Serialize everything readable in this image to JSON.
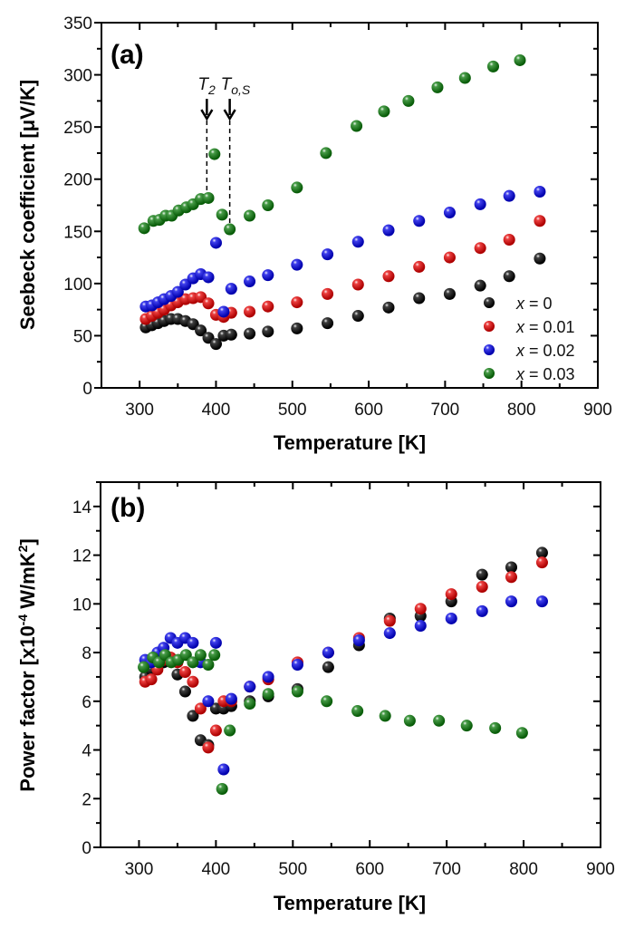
{
  "chart_data": [
    {
      "type": "scatter",
      "panel_label": "(a)",
      "title": "",
      "xlabel": "Temperature [K]",
      "ylabel": "Seebeck coefficient [μV/K]",
      "xlim": [
        250,
        900
      ],
      "ylim": [
        0,
        350
      ],
      "xticks": [
        300,
        400,
        500,
        600,
        700,
        800,
        900
      ],
      "yticks": [
        0,
        50,
        100,
        150,
        200,
        250,
        300,
        350
      ],
      "grid": false,
      "legend_position": "bottom-right",
      "annotations": [
        {
          "text": "T",
          "sub": "2",
          "x": 388,
          "arrow_y_from": 277,
          "line_to": 182
        },
        {
          "text": "T",
          "sub": "o,S",
          "x": 418,
          "arrow_y_from": 277,
          "line_to": 152
        }
      ],
      "series": [
        {
          "name": "x = 0",
          "label_var": "x",
          "label_val": "= 0",
          "color": "#000000",
          "x": [
            308,
            316,
            324,
            332,
            341,
            350,
            360,
            370,
            380,
            390,
            400,
            410,
            420,
            444,
            468,
            506,
            546,
            586,
            626,
            666,
            706,
            746,
            784,
            824
          ],
          "y": [
            58,
            60,
            62,
            64,
            66,
            66,
            64,
            61,
            55,
            48,
            42,
            50,
            51,
            52,
            54,
            57,
            62,
            69,
            77,
            86,
            90,
            98,
            107,
            124
          ]
        },
        {
          "name": "x = 0.01",
          "label_var": "x",
          "label_val": "= 0.01",
          "color": "#e60000",
          "x": [
            308,
            316,
            324,
            332,
            341,
            350,
            360,
            370,
            380,
            390,
            400,
            410,
            420,
            444,
            468,
            506,
            546,
            586,
            626,
            666,
            706,
            746,
            784,
            824
          ],
          "y": [
            66,
            69,
            72,
            75,
            79,
            82,
            85,
            86,
            87,
            81,
            70,
            68,
            72,
            73,
            78,
            82,
            90,
            99,
            107,
            116,
            125,
            134,
            142,
            160
          ]
        },
        {
          "name": "x = 0.02",
          "label_var": "x",
          "label_val": "= 0.02",
          "color": "#0000e6",
          "x": [
            308,
            316,
            324,
            332,
            341,
            350,
            360,
            370,
            380,
            390,
            400,
            410,
            420,
            444,
            468,
            506,
            546,
            586,
            626,
            666,
            706,
            746,
            784,
            824
          ],
          "y": [
            78,
            79,
            82,
            85,
            88,
            92,
            99,
            105,
            109,
            106,
            139,
            73,
            95,
            102,
            108,
            118,
            128,
            140,
            151,
            160,
            168,
            176,
            184,
            188
          ]
        },
        {
          "name": "x = 0.03",
          "label_var": "x",
          "label_val": "= 0.03",
          "color": "#0a7a0a",
          "x": [
            306,
            318,
            326,
            334,
            342,
            351,
            361,
            370,
            380,
            390,
            398,
            408,
            418,
            444,
            468,
            506,
            544,
            584,
            620,
            652,
            690,
            726,
            763,
            798
          ],
          "y": [
            153,
            160,
            161,
            165,
            165,
            170,
            173,
            176,
            181,
            182,
            224,
            166,
            152,
            165,
            175,
            192,
            225,
            251,
            265,
            275,
            288,
            297,
            308,
            314
          ]
        }
      ]
    },
    {
      "type": "scatter",
      "panel_label": "(b)",
      "title": "",
      "xlabel": "Temperature [K]",
      "ylabel": "Power factor [x10",
      "ylabel_sup": "-4",
      "ylabel_rest": " W/mK",
      "ylabel_sup2": "2",
      "ylabel_end": "]",
      "xlim": [
        250,
        900
      ],
      "ylim": [
        0,
        15
      ],
      "xticks": [
        300,
        400,
        500,
        600,
        700,
        800,
        900
      ],
      "yticks": [
        0,
        2,
        4,
        6,
        8,
        10,
        12,
        14
      ],
      "grid": false,
      "series": [
        {
          "name": "x = 0",
          "color": "#000000",
          "x": [
            308,
            316,
            324,
            332,
            341,
            350,
            360,
            370,
            380,
            390,
            400,
            410,
            420,
            444,
            468,
            506,
            546,
            586,
            626,
            666,
            706,
            746,
            784,
            824
          ],
          "y": [
            7.0,
            7.3,
            7.5,
            7.6,
            7.7,
            7.1,
            6.4,
            5.4,
            4.4,
            4.2,
            5.7,
            5.7,
            5.8,
            6.0,
            6.2,
            6.5,
            7.4,
            8.3,
            9.4,
            9.5,
            10.1,
            11.2,
            11.5,
            12.1
          ]
        },
        {
          "name": "x = 0.01",
          "color": "#e60000",
          "x": [
            308,
            316,
            324,
            332,
            341,
            350,
            360,
            370,
            380,
            390,
            400,
            410,
            420,
            444,
            468,
            506,
            546,
            586,
            626,
            666,
            706,
            746,
            784,
            824
          ],
          "y": [
            6.8,
            6.9,
            7.3,
            7.7,
            7.8,
            7.6,
            7.2,
            6.8,
            5.7,
            4.1,
            4.8,
            6.0,
            6.0,
            6.6,
            6.9,
            7.6,
            8.0,
            8.6,
            9.3,
            9.8,
            10.4,
            10.7,
            11.1,
            11.7
          ]
        },
        {
          "name": "x = 0.02",
          "color": "#0000e6",
          "x": [
            308,
            316,
            324,
            332,
            341,
            350,
            360,
            370,
            380,
            390,
            400,
            410,
            420,
            444,
            468,
            506,
            546,
            586,
            626,
            666,
            706,
            746,
            784,
            824
          ],
          "y": [
            7.7,
            7.6,
            8.0,
            8.2,
            8.6,
            8.4,
            8.6,
            8.4,
            7.6,
            6.0,
            8.4,
            3.2,
            6.1,
            6.6,
            7.0,
            7.5,
            8.0,
            8.5,
            8.8,
            9.1,
            9.4,
            9.7,
            10.1,
            10.1
          ]
        },
        {
          "name": "x = 0.03",
          "color": "#0a7a0a",
          "x": [
            306,
            318,
            326,
            334,
            342,
            351,
            361,
            370,
            380,
            390,
            398,
            408,
            418,
            444,
            468,
            506,
            544,
            584,
            620,
            652,
            690,
            726,
            763,
            798
          ],
          "y": [
            7.4,
            7.8,
            7.6,
            7.9,
            7.6,
            7.7,
            7.9,
            7.6,
            7.9,
            7.5,
            7.9,
            2.4,
            4.8,
            5.9,
            6.3,
            6.4,
            6.0,
            5.6,
            5.4,
            5.2,
            5.2,
            5.0,
            4.9,
            4.7
          ]
        }
      ]
    }
  ]
}
